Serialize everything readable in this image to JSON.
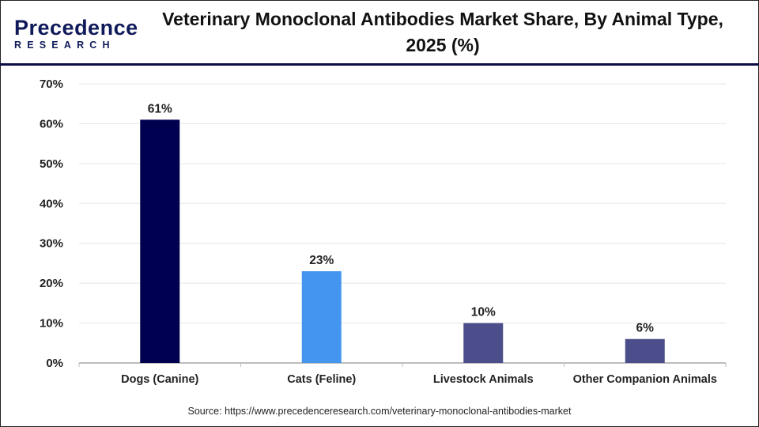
{
  "logo": {
    "line1a": "Precedence",
    "line2": "RESEARCH"
  },
  "title": "Veterinary Monoclonal Antibodies Market Share, By Animal Type, 2025 (%)",
  "source": "Source: https://www.precedenceresearch.com/veterinary-monoclonal-antibodies-market",
  "chart_data": {
    "type": "bar",
    "title": "Veterinary Monoclonal Antibodies Market Share, By Animal Type, 2025 (%)",
    "categories": [
      "Dogs (Canine)",
      "Cats (Feline)",
      "Livestock Animals",
      "Other Companion Animals"
    ],
    "values": [
      61,
      23,
      10,
      6
    ],
    "data_labels": [
      "61%",
      "23%",
      "10%",
      "6%"
    ],
    "colors": [
      "#000050",
      "#4495ee",
      "#4b4e8a",
      "#4b4e8a"
    ],
    "ylim": [
      0,
      70
    ],
    "yticks": [
      0,
      10,
      20,
      30,
      40,
      50,
      60,
      70
    ],
    "ytick_labels": [
      "0%",
      "10%",
      "20%",
      "30%",
      "40%",
      "50%",
      "60%",
      "70%"
    ],
    "xlabel": "",
    "ylabel": "",
    "grid": true,
    "legend": "none"
  }
}
